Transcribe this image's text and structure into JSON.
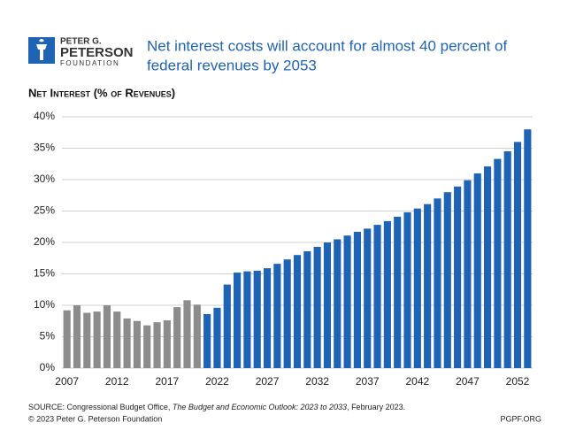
{
  "logo": {
    "line1": "PETER G.",
    "line2": "PETERSON",
    "line3": "FOUNDATION"
  },
  "chart_data": {
    "type": "bar",
    "title": "Net interest costs will account for almost 40 percent of federal revenues by 2053",
    "title_lines": [
      "Net interest costs will account for almost 40 percent of",
      "federal revenues by 2053"
    ],
    "subtitle": "Net Interest (% of Revenues)",
    "categories": [
      "2007",
      null,
      null,
      null,
      null,
      "2012",
      null,
      null,
      null,
      null,
      "2017",
      null,
      null,
      null,
      null,
      "2022",
      null,
      null,
      null,
      null,
      "2027",
      null,
      null,
      null,
      null,
      "2032",
      null,
      null,
      null,
      null,
      "2037",
      null,
      null,
      null,
      null,
      "2042",
      null,
      null,
      null,
      null,
      "2047",
      null,
      null,
      null,
      null,
      "2052",
      null
    ],
    "series": [
      {
        "color": "#8c8c8c",
        "values": [
          9.2,
          10.0,
          8.8,
          9.0,
          10.0,
          9.0,
          7.9,
          7.5,
          6.8,
          7.3,
          7.6,
          9.7,
          10.8,
          10.1,
          null,
          null,
          null,
          null,
          null,
          null,
          null,
          null,
          null,
          null,
          null,
          null,
          null,
          null,
          null,
          null,
          null,
          null,
          null,
          null,
          null,
          null,
          null,
          null,
          null,
          null,
          null,
          null,
          null,
          null,
          null,
          null,
          null
        ]
      },
      {
        "color": "#1f64b4",
        "values": [
          null,
          null,
          null,
          null,
          null,
          null,
          null,
          null,
          null,
          null,
          null,
          null,
          null,
          null,
          8.6,
          9.6,
          13.3,
          15.2,
          15.4,
          15.5,
          15.9,
          16.6,
          17.3,
          18.0,
          18.6,
          19.3,
          20.0,
          20.5,
          21.1,
          21.7,
          22.2,
          22.8,
          23.4,
          24.1,
          24.8,
          25.4,
          26.1,
          27.0,
          28.0,
          28.9,
          29.9,
          31.0,
          32.1,
          33.3,
          34.5,
          36.0,
          38.0
        ]
      }
    ],
    "ylim": [
      0,
      40
    ],
    "yticks": [
      {
        "value": 0,
        "label": "0%"
      },
      {
        "value": 5,
        "label": "5%"
      },
      {
        "value": 10,
        "label": "10%"
      },
      {
        "value": 15,
        "label": "15%"
      },
      {
        "value": 20,
        "label": "20%"
      },
      {
        "value": 25,
        "label": "25%"
      },
      {
        "value": 30,
        "label": "30%"
      },
      {
        "value": 35,
        "label": "35%"
      },
      {
        "value": 40,
        "label": "40%"
      }
    ],
    "grid": true
  },
  "footer": {
    "source_prefix": "SOURCE: Congressional Budget Office, ",
    "source_title": "The Budget and Economic Outlook: 2023 to 2033",
    "source_suffix": ", February 2023.",
    "copyright": "© 2023 Peter G. Peterson Foundation",
    "site": "PGPF.ORG"
  }
}
